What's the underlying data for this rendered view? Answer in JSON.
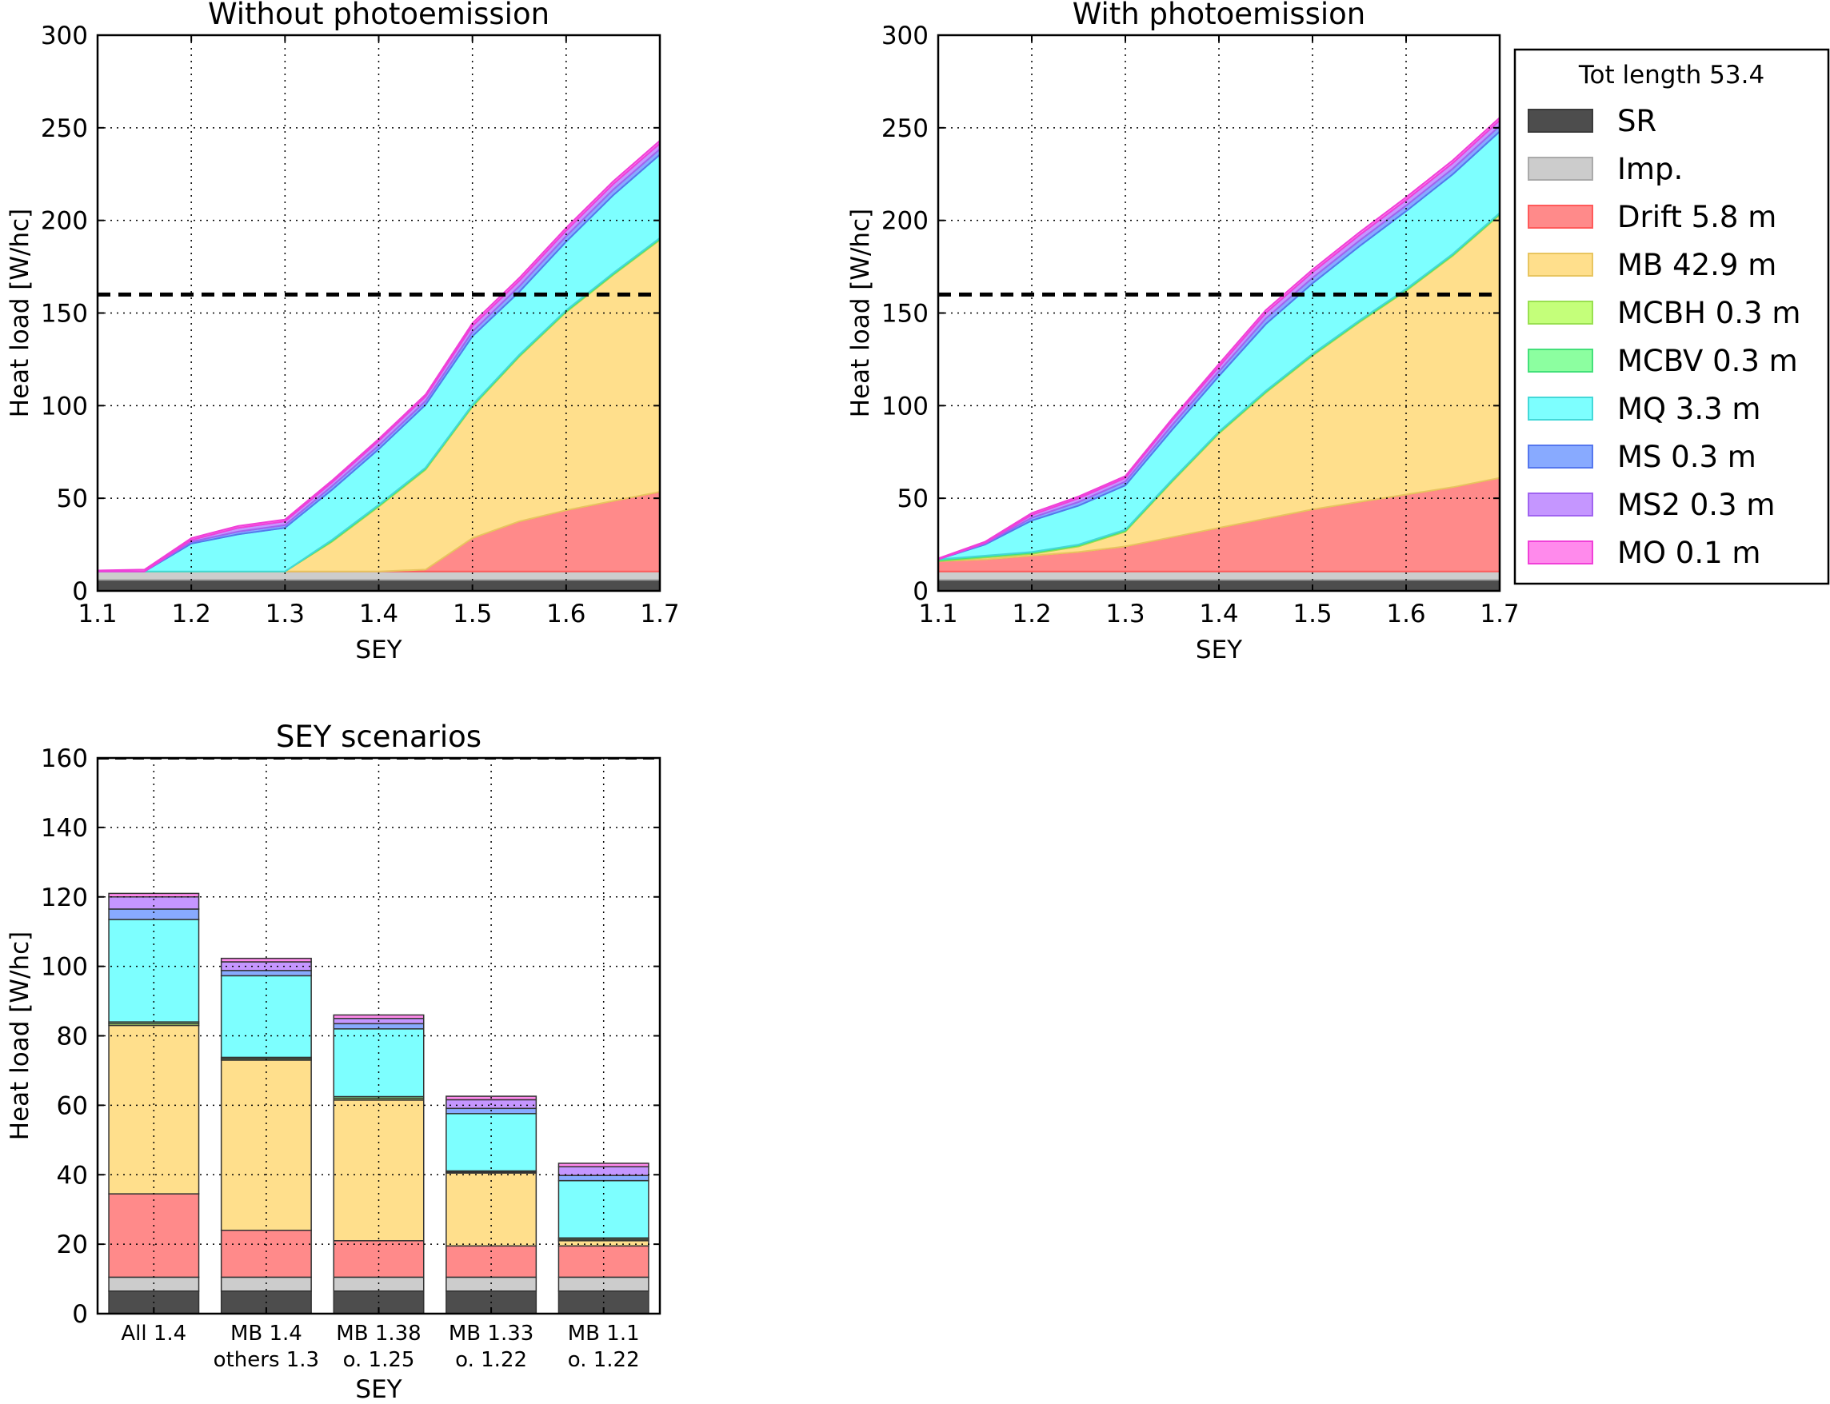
{
  "legend": {
    "title": "Tot length 53.4",
    "items": [
      "SR",
      "Imp.",
      "Drift 5.8 m",
      "MB 42.9 m",
      "MCBH 0.3 m",
      "MCBV 0.3 m",
      "MQ 3.3 m",
      "MS 0.3 m",
      "MS2 0.3 m",
      "MO 0.1 m"
    ]
  },
  "colors": {
    "SR": "#4d4d4d",
    "Imp": "#cccccc",
    "Drift": "#ff8a8a",
    "MB": "#ffdf8c",
    "MCBH": "#c4ff7a",
    "MCBV": "#8cffa0",
    "MQ": "#7dffff",
    "MS": "#88aaff",
    "MS2": "#c596ff",
    "MO": "#ff8aec",
    "limit_line": "#000000"
  },
  "chart_data": [
    {
      "type": "area",
      "title": "Without photoemission",
      "xlabel": "SEY",
      "ylabel": "Heat load [W/hc]",
      "xlim": [
        1.1,
        1.7
      ],
      "ylim": [
        0,
        300
      ],
      "xticks": [
        "1.1",
        "1.2",
        "1.3",
        "1.4",
        "1.5",
        "1.6",
        "1.7"
      ],
      "yticks": [
        "0",
        "50",
        "100",
        "150",
        "200",
        "250",
        "300"
      ],
      "grid": true,
      "reference_line": 160,
      "x": [
        1.1,
        1.15,
        1.2,
        1.25,
        1.3,
        1.35,
        1.4,
        1.45,
        1.5,
        1.55,
        1.6,
        1.65,
        1.7
      ],
      "series": [
        {
          "name": "SR",
          "values": [
            6,
            6,
            6,
            6,
            6,
            6,
            6,
            6,
            6,
            6,
            6,
            6,
            6
          ]
        },
        {
          "name": "Imp.",
          "values": [
            4.5,
            4.5,
            4.5,
            4.5,
            4.5,
            4.5,
            4.5,
            4.5,
            4.5,
            4.5,
            4.5,
            4.5,
            4.5
          ]
        },
        {
          "name": "Drift 5.8 m",
          "values": [
            0,
            0,
            0,
            0,
            0,
            0,
            0,
            1,
            18,
            27,
            33,
            38,
            43
          ]
        },
        {
          "name": "MB 42.9 m",
          "values": [
            0,
            0,
            0,
            0,
            0,
            16,
            35,
            54,
            71,
            89,
            107,
            122,
            136
          ]
        },
        {
          "name": "MCBH 0.3 m",
          "values": [
            0,
            0,
            0,
            0,
            0,
            0.5,
            0.5,
            0.5,
            0.5,
            0.5,
            0.5,
            0.5,
            0.5
          ]
        },
        {
          "name": "MCBV 0.3 m",
          "values": [
            0,
            0,
            0,
            0,
            0,
            0.5,
            0.5,
            0.5,
            0.5,
            0.5,
            0.5,
            0.5,
            0.5
          ]
        },
        {
          "name": "MQ 3.3 m",
          "values": [
            0,
            0,
            15,
            20,
            23.5,
            27,
            30,
            34,
            37,
            34,
            37,
            42,
            45
          ]
        },
        {
          "name": "MS 0.3 m",
          "values": [
            0,
            0,
            1,
            1.5,
            1.5,
            2,
            2,
            2,
            2.5,
            3,
            3,
            3,
            3
          ]
        },
        {
          "name": "MS2 0.3 m",
          "values": [
            0,
            0,
            1,
            2,
            2,
            2,
            2.5,
            2.5,
            3,
            3,
            3,
            3,
            3
          ]
        },
        {
          "name": "MO 0.1 m",
          "values": [
            0.5,
            1,
            1,
            1,
            1,
            1,
            1,
            1,
            1.5,
            1.5,
            1.5,
            1.5,
            1.5
          ]
        }
      ]
    },
    {
      "type": "area",
      "title": "With photoemission",
      "xlabel": "SEY",
      "ylabel": "Heat load [W/hc]",
      "xlim": [
        1.1,
        1.7
      ],
      "ylim": [
        0,
        300
      ],
      "xticks": [
        "1.1",
        "1.2",
        "1.3",
        "1.4",
        "1.5",
        "1.6",
        "1.7"
      ],
      "yticks": [
        "0",
        "50",
        "100",
        "150",
        "200",
        "250",
        "300"
      ],
      "grid": true,
      "reference_line": 160,
      "x": [
        1.1,
        1.15,
        1.2,
        1.25,
        1.3,
        1.35,
        1.4,
        1.45,
        1.5,
        1.55,
        1.6,
        1.65,
        1.7
      ],
      "series": [
        {
          "name": "SR",
          "values": [
            6,
            6,
            6,
            6,
            6,
            6,
            6,
            6,
            6,
            6,
            6,
            6,
            6
          ]
        },
        {
          "name": "Imp.",
          "values": [
            4.5,
            4.5,
            4.5,
            4.5,
            4.5,
            4.5,
            4.5,
            4.5,
            4.5,
            4.5,
            4.5,
            4.5,
            4.5
          ]
        },
        {
          "name": "Drift 5.8 m",
          "values": [
            5.5,
            6.5,
            8.5,
            10.5,
            13.5,
            18.5,
            23.5,
            28.5,
            33.5,
            37.5,
            41.5,
            45.5,
            50.5
          ]
        },
        {
          "name": "MB 42.9 m",
          "values": [
            0,
            1,
            1,
            3,
            8,
            30,
            51,
            68,
            83,
            97,
            110,
            125,
            142
          ]
        },
        {
          "name": "MCBH 0.3 m",
          "values": [
            0.5,
            0.5,
            0.5,
            0.5,
            0.5,
            0.5,
            0.5,
            0.5,
            0.5,
            0.5,
            0.5,
            0.5,
            0.5
          ]
        },
        {
          "name": "MCBV 0.3 m",
          "values": [
            0.5,
            0.5,
            0.5,
            0.5,
            0.5,
            0.5,
            0.5,
            0.5,
            0.5,
            0.5,
            0.5,
            0.5,
            0.5
          ]
        },
        {
          "name": "MQ 3.3 m",
          "values": [
            0,
            6,
            17,
            21,
            24,
            27,
            30,
            36,
            38,
            40,
            42,
            43,
            44
          ]
        },
        {
          "name": "MS 0.3 m",
          "values": [
            0,
            0.5,
            1.5,
            2,
            2,
            2.5,
            2.5,
            3,
            3,
            3,
            3,
            3,
            3
          ]
        },
        {
          "name": "MS2 0.3 m",
          "values": [
            0,
            0.5,
            1.5,
            2,
            2,
            2.5,
            2.5,
            3,
            3,
            3,
            3,
            3,
            3
          ]
        },
        {
          "name": "MO 0.1 m",
          "values": [
            0.5,
            0.5,
            1,
            1,
            1,
            1,
            1.5,
            1.5,
            1.5,
            1.5,
            1.5,
            1.5,
            1.5
          ]
        }
      ]
    },
    {
      "type": "bar",
      "stacked": true,
      "title": "SEY scenarios",
      "xlabel": "SEY",
      "ylabel": "Heat load [W/hc]",
      "ylim": [
        0,
        160
      ],
      "yticks": [
        "0",
        "20",
        "40",
        "60",
        "80",
        "100",
        "120",
        "140",
        "160"
      ],
      "grid": true,
      "reference_line": 160,
      "categories": [
        [
          "All 1.4"
        ],
        [
          "MB 1.4",
          "others 1.3"
        ],
        [
          "MB 1.38",
          "o. 1.25"
        ],
        [
          "MB 1.33",
          "o. 1.22"
        ],
        [
          "MB 1.1",
          "o. 1.22"
        ]
      ],
      "series": [
        {
          "name": "SR",
          "values": [
            6.5,
            6.5,
            6.5,
            6.5,
            6.5
          ]
        },
        {
          "name": "Imp.",
          "values": [
            4,
            4,
            4,
            4,
            4
          ]
        },
        {
          "name": "Drift 5.8 m",
          "values": [
            24,
            13.5,
            10.5,
            9,
            9
          ]
        },
        {
          "name": "MB 42.9 m",
          "values": [
            48.5,
            49,
            40.5,
            21,
            1.5
          ]
        },
        {
          "name": "MCBH 0.3 m",
          "values": [
            0.5,
            0.4,
            0.5,
            0.3,
            0.4
          ]
        },
        {
          "name": "MCBV 0.3 m",
          "values": [
            0.5,
            0.4,
            0.5,
            0.3,
            0.4
          ]
        },
        {
          "name": "MQ 3.3 m",
          "values": [
            29.5,
            23.5,
            19.5,
            16.5,
            16.5
          ]
        },
        {
          "name": "MS 0.3 m",
          "values": [
            3,
            1.5,
            1.5,
            1.5,
            1.5
          ]
        },
        {
          "name": "MS2 0.3 m",
          "values": [
            3.5,
            2.5,
            1.5,
            2.5,
            2.5
          ]
        },
        {
          "name": "MO 0.1 m",
          "values": [
            1,
            1,
            1,
            1,
            1
          ]
        }
      ]
    }
  ]
}
